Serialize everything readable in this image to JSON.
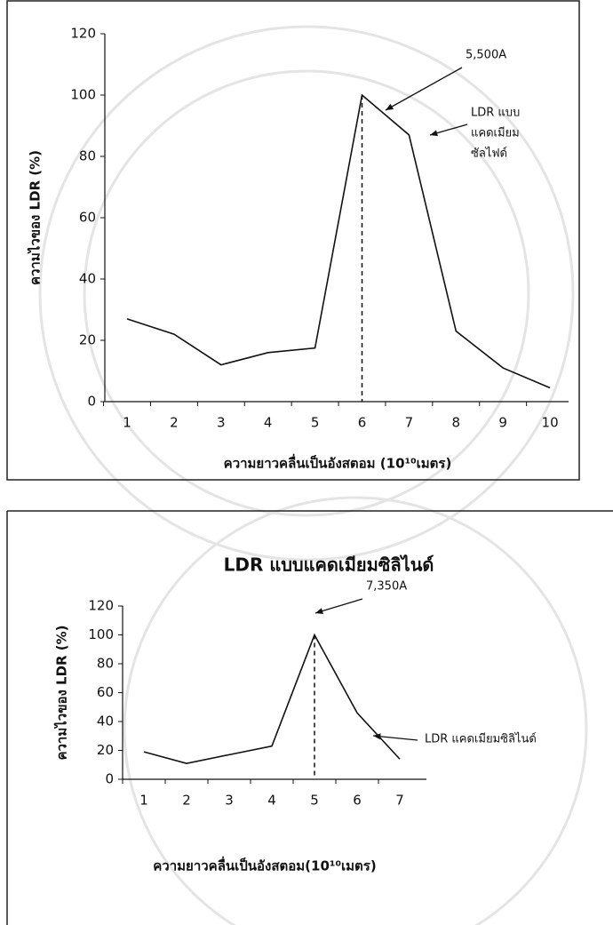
{
  "chart_data": [
    {
      "type": "line",
      "x_label": "ความยาวคลื่นเป็นอังสตอม (10¹⁰เมตร)",
      "y_label": "ความไวของ LDR (%)",
      "categories": [
        "1",
        "2",
        "3",
        "4",
        "5",
        "6",
        "7",
        "8",
        "9",
        "10"
      ],
      "values": [
        27,
        22,
        12,
        16,
        17.5,
        100,
        87,
        23,
        11,
        4.5
      ],
      "color": "#111111",
      "ylim": [
        0,
        120
      ],
      "yticks": [
        0,
        20,
        40,
        60,
        80,
        100,
        120
      ],
      "annotations": [
        "5,500A",
        "LDR แบบ",
        "แคดเมียม",
        "ซัลไฟด์"
      ]
    },
    {
      "type": "line",
      "title": "LDR แบบแคดเมียมซิลิไนด์",
      "x_label": "ความยาวคลื่นเป็นอังสตอม(10¹⁰เมตร)",
      "y_label": "ความไวของ LDR (%)",
      "categories": [
        "1",
        "2",
        "3",
        "4",
        "5",
        "6",
        "7"
      ],
      "values": [
        19,
        11,
        17,
        23,
        100,
        46,
        14
      ],
      "color": "#111111",
      "ylim": [
        0,
        120
      ],
      "yticks": [
        0,
        20,
        40,
        60,
        80,
        100,
        120
      ],
      "annotations": [
        "7,350A",
        "LDR แคดเมียมซิลิไนด์"
      ]
    }
  ]
}
